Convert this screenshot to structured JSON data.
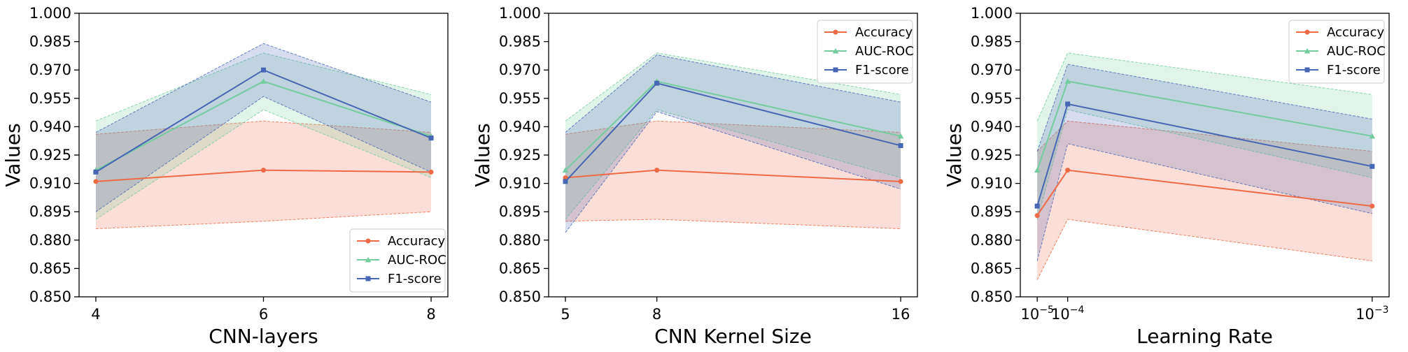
{
  "colors": {
    "accuracy": "#ee6a47",
    "auc_roc": "#74cc9f",
    "f1_score": "#4766b4"
  },
  "chart_data": [
    {
      "type": "line",
      "xlabel": "CNN-layers",
      "ylabel": "Values",
      "x": [
        4,
        6,
        8
      ],
      "x_tick_labels": [
        "4",
        "6",
        "8"
      ],
      "xlim": [
        3.8,
        8.2
      ],
      "ylim": [
        0.85,
        1.0
      ],
      "y_ticks": [
        "0.850",
        "0.865",
        "0.880",
        "0.895",
        "0.910",
        "0.925",
        "0.940",
        "0.955",
        "0.970",
        "0.985",
        "1.000"
      ],
      "legend_position": "lower-right",
      "series": [
        {
          "name": "Accuracy",
          "key": "accuracy",
          "marker": "circle",
          "values": [
            0.911,
            0.917,
            0.916
          ],
          "lower": [
            0.886,
            0.89,
            0.895
          ],
          "upper": [
            0.936,
            0.943,
            0.937
          ]
        },
        {
          "name": "AUC-ROC",
          "key": "auc_roc",
          "marker": "triangle",
          "values": [
            0.917,
            0.964,
            0.935
          ],
          "lower": [
            0.891,
            0.949,
            0.913
          ],
          "upper": [
            0.943,
            0.979,
            0.957
          ]
        },
        {
          "name": "F1-score",
          "key": "f1_score",
          "marker": "square",
          "values": [
            0.916,
            0.97,
            0.934
          ],
          "lower": [
            0.895,
            0.956,
            0.916
          ],
          "upper": [
            0.937,
            0.984,
            0.953
          ]
        }
      ]
    },
    {
      "type": "line",
      "xlabel": "CNN Kernel Size",
      "ylabel": "Values",
      "x": [
        5,
        8,
        16
      ],
      "x_tick_labels": [
        "5",
        "8",
        "16"
      ],
      "xlim": [
        4.45,
        16.55
      ],
      "ylim": [
        0.85,
        1.0
      ],
      "y_ticks": [
        "0.850",
        "0.865",
        "0.880",
        "0.895",
        "0.910",
        "0.925",
        "0.940",
        "0.955",
        "0.970",
        "0.985",
        "1.000"
      ],
      "legend_position": "upper-right",
      "series": [
        {
          "name": "Accuracy",
          "key": "accuracy",
          "marker": "circle",
          "values": [
            0.913,
            0.917,
            0.911
          ],
          "lower": [
            0.89,
            0.891,
            0.886
          ],
          "upper": [
            0.936,
            0.943,
            0.937
          ]
        },
        {
          "name": "AUC-ROC",
          "key": "auc_roc",
          "marker": "triangle",
          "values": [
            0.917,
            0.964,
            0.935
          ],
          "lower": [
            0.891,
            0.949,
            0.913
          ],
          "upper": [
            0.943,
            0.979,
            0.957
          ]
        },
        {
          "name": "F1-score",
          "key": "f1_score",
          "marker": "square",
          "values": [
            0.911,
            0.963,
            0.93
          ],
          "lower": [
            0.884,
            0.948,
            0.907
          ],
          "upper": [
            0.937,
            0.978,
            0.953
          ]
        }
      ]
    },
    {
      "type": "line",
      "xlabel": "Learning Rate",
      "ylabel": "Values",
      "x": [
        1e-05,
        0.0001,
        0.001
      ],
      "x_tick_labels": [
        "10",
        "10",
        "10"
      ],
      "x_tick_exponents": [
        "−5",
        "−4",
        "−3"
      ],
      "xlim": [
        -4e-05,
        0.00105
      ],
      "ylim": [
        0.85,
        1.0
      ],
      "y_ticks": [
        "0.850",
        "0.865",
        "0.880",
        "0.895",
        "0.910",
        "0.925",
        "0.940",
        "0.955",
        "0.970",
        "0.985",
        "1.000"
      ],
      "legend_position": "upper-right",
      "series": [
        {
          "name": "Accuracy",
          "key": "accuracy",
          "marker": "circle",
          "values": [
            0.893,
            0.917,
            0.898
          ],
          "lower": [
            0.859,
            0.891,
            0.869
          ],
          "upper": [
            0.927,
            0.943,
            0.927
          ]
        },
        {
          "name": "AUC-ROC",
          "key": "auc_roc",
          "marker": "triangle",
          "values": [
            0.917,
            0.964,
            0.935
          ],
          "lower": [
            0.891,
            0.949,
            0.913
          ],
          "upper": [
            0.943,
            0.979,
            0.957
          ]
        },
        {
          "name": "F1-score",
          "key": "f1_score",
          "marker": "square",
          "values": [
            0.898,
            0.952,
            0.919
          ],
          "lower": [
            0.869,
            0.931,
            0.894
          ],
          "upper": [
            0.927,
            0.973,
            0.944
          ]
        }
      ]
    }
  ]
}
